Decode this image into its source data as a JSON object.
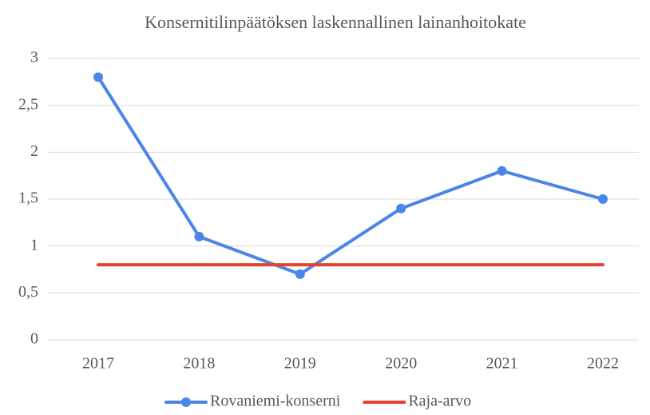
{
  "chart_data": {
    "type": "line",
    "title": "Konsernitilinpäätöksen laskennallinen lainanhoitokate",
    "categories": [
      "2017",
      "2018",
      "2019",
      "2020",
      "2021",
      "2022"
    ],
    "series": [
      {
        "name": "Rovaniemi-konserni",
        "color": "#4a86e8",
        "markers": true,
        "values": [
          2.8,
          1.1,
          0.7,
          1.4,
          1.8,
          1.5
        ]
      },
      {
        "name": "Raja-arvo",
        "color": "#e8412c",
        "markers": false,
        "values": [
          0.8,
          0.8,
          0.8,
          0.8,
          0.8,
          0.8
        ]
      }
    ],
    "ylim": [
      0,
      3
    ],
    "yticks": [
      0,
      {
        "value": 0.5,
        "label": "0,5"
      },
      1,
      {
        "value": 1.5,
        "label": "1,5"
      },
      2,
      {
        "value": 2.5,
        "label": "2,5"
      },
      3
    ],
    "grid": true,
    "legend": "bottom"
  }
}
